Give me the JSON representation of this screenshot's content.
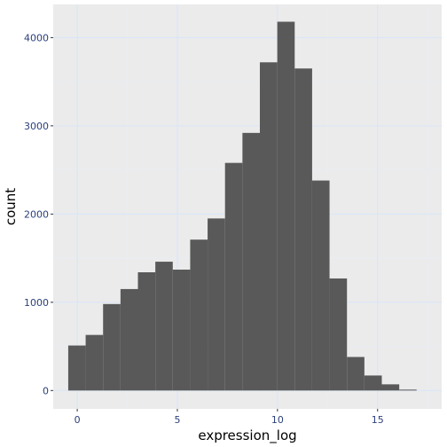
{
  "chart_data": {
    "type": "bar",
    "subtype": "histogram",
    "title": "",
    "xlabel": "expression_log",
    "ylabel": "count",
    "xlim": [
      -1.2,
      18.2
    ],
    "ylim": [
      -208,
      4376
    ],
    "x_ticks": [
      0,
      5,
      10,
      15
    ],
    "y_ticks": [
      0,
      1000,
      2000,
      3000,
      4000
    ],
    "x_tick_labels": [
      "0",
      "5",
      "10",
      "15"
    ],
    "y_tick_labels": [
      "0",
      "1000",
      "2000",
      "3000",
      "4000"
    ],
    "bin_width": 0.87,
    "bins": [
      {
        "x0": -0.45,
        "x1": 0.42,
        "count": 510
      },
      {
        "x0": 0.42,
        "x1": 1.29,
        "count": 630
      },
      {
        "x0": 1.29,
        "x1": 2.16,
        "count": 980
      },
      {
        "x0": 2.16,
        "x1": 3.03,
        "count": 1150
      },
      {
        "x0": 3.03,
        "x1": 3.9,
        "count": 1340
      },
      {
        "x0": 3.9,
        "x1": 4.77,
        "count": 1460
      },
      {
        "x0": 4.77,
        "x1": 5.64,
        "count": 1370
      },
      {
        "x0": 5.64,
        "x1": 6.51,
        "count": 1710
      },
      {
        "x0": 6.51,
        "x1": 7.38,
        "count": 1950
      },
      {
        "x0": 7.38,
        "x1": 8.25,
        "count": 2580
      },
      {
        "x0": 8.25,
        "x1": 9.12,
        "count": 2920
      },
      {
        "x0": 9.12,
        "x1": 9.99,
        "count": 3720
      },
      {
        "x0": 9.99,
        "x1": 10.86,
        "count": 4180
      },
      {
        "x0": 10.86,
        "x1": 11.73,
        "count": 3650
      },
      {
        "x0": 11.73,
        "x1": 12.6,
        "count": 2380
      },
      {
        "x0": 12.6,
        "x1": 13.47,
        "count": 1270
      },
      {
        "x0": 13.47,
        "x1": 14.34,
        "count": 380
      },
      {
        "x0": 14.34,
        "x1": 15.21,
        "count": 170
      },
      {
        "x0": 15.21,
        "x1": 16.08,
        "count": 70
      },
      {
        "x0": 16.08,
        "x1": 16.95,
        "count": 10
      }
    ],
    "grid": true,
    "legend": "none",
    "colors": {
      "bar": "#595959",
      "panel": "#ebebeb",
      "grid_major": "#d9e6f7",
      "grid_minor": "#e6eef9",
      "tick_label": "#2b3f7a",
      "axis_title": "#000000"
    }
  }
}
